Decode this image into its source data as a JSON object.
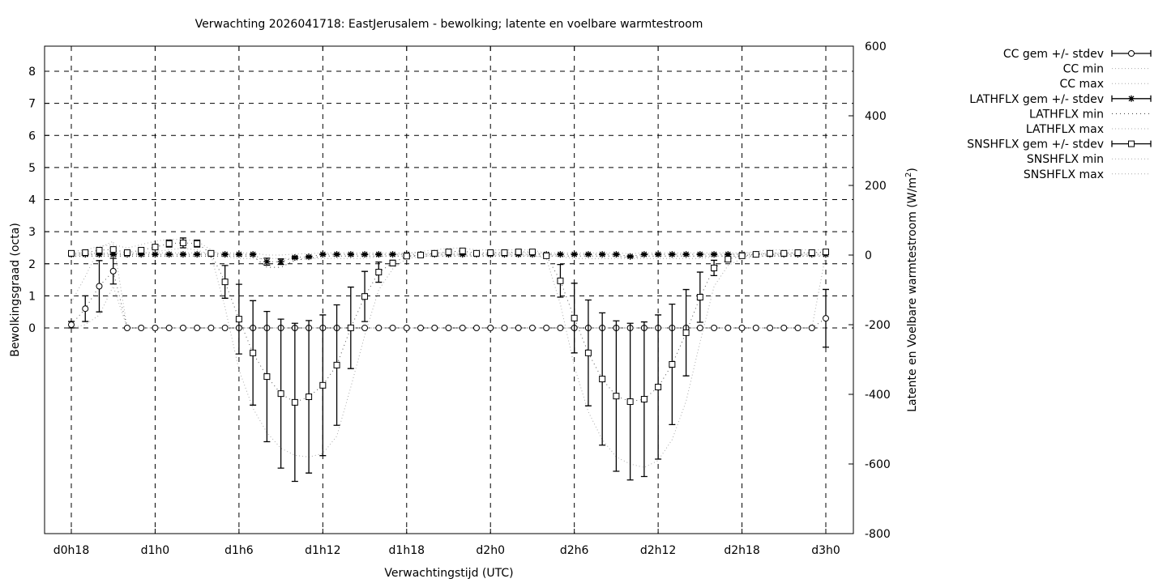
{
  "chart_data": {
    "type": "line",
    "title": "Verwachting 2026041718: EastJerusalem - bewolking; latente en voelbare warmtestroom",
    "xlabel": "Verwachtingstijd (UTC)",
    "ylabel": "Bewolkingsgraad (octa)",
    "y2label": "Latente en Voelbare warmtestroom (W/m",
    "y2label_sup": "2",
    "y2label_end": ")",
    "x_unit": "hours since d0h18",
    "xlim": [
      -1.9,
      56
    ],
    "ylim": [
      -6.4,
      8.8
    ],
    "y2lim": [
      -800,
      600
    ],
    "grid": true,
    "legend_position": "outside-right",
    "x_ticks": [
      {
        "value": 0,
        "label": "d0h18"
      },
      {
        "value": 6,
        "label": "d1h0"
      },
      {
        "value": 12,
        "label": "d1h6"
      },
      {
        "value": 18,
        "label": "d1h12"
      },
      {
        "value": 24,
        "label": "d1h18"
      },
      {
        "value": 30,
        "label": "d2h0"
      },
      {
        "value": 36,
        "label": "d2h6"
      },
      {
        "value": 42,
        "label": "d2h12"
      },
      {
        "value": 48,
        "label": "d2h18"
      },
      {
        "value": 54,
        "label": "d3h0"
      }
    ],
    "y_ticks": [
      "0",
      "1",
      "2",
      "3",
      "4",
      "5",
      "6",
      "7",
      "8"
    ],
    "y2_ticks": [
      "600",
      "400",
      "200",
      "0",
      "-200",
      "-400",
      "-600",
      "-800"
    ],
    "x": [
      0,
      1,
      2,
      3,
      4,
      5,
      6,
      7,
      8,
      9,
      10,
      11,
      12,
      13,
      14,
      15,
      16,
      17,
      18,
      19,
      20,
      21,
      22,
      23,
      24,
      25,
      26,
      27,
      28,
      29,
      30,
      31,
      32,
      33,
      34,
      35,
      36,
      37,
      38,
      39,
      40,
      41,
      42,
      43,
      44,
      45,
      46,
      47,
      48,
      49,
      50,
      51,
      52,
      53,
      54
    ],
    "series": [
      {
        "name": "CC gem +/- stdev",
        "axis": "y",
        "marker": "circle",
        "values": [
          0.1,
          0.6,
          1.3,
          1.77,
          0,
          0,
          0,
          0,
          0,
          0,
          0,
          0,
          0,
          0,
          0,
          0,
          0,
          0,
          0,
          0,
          0,
          0,
          0,
          0,
          0,
          0,
          0,
          0,
          0,
          0,
          0,
          0,
          0,
          0,
          0,
          0,
          0,
          0,
          0,
          0,
          0,
          0,
          0,
          0,
          0,
          0,
          0,
          0,
          0,
          0,
          0,
          0,
          0,
          0,
          0.3
        ],
        "stdev": [
          0.1,
          0.4,
          0.8,
          0.4,
          0,
          0,
          0,
          0,
          0,
          0,
          0,
          0,
          0,
          0,
          0,
          0,
          0,
          0,
          0,
          0,
          0,
          0,
          0,
          0,
          0,
          0,
          0,
          0,
          0,
          0,
          0,
          0,
          0,
          0,
          0,
          0,
          0,
          0,
          0,
          0,
          0,
          0,
          0,
          0,
          0,
          0,
          0,
          0,
          0,
          0,
          0,
          0,
          0,
          0,
          0.9
        ]
      },
      {
        "name": "CC min",
        "axis": "y",
        "style": "dotted",
        "values": [
          0,
          0.1,
          0.4,
          1.3,
          0,
          0,
          0,
          0,
          0,
          0,
          0,
          0,
          0,
          0,
          0,
          0,
          0,
          0,
          0,
          0,
          0,
          0,
          0,
          0,
          0,
          0,
          0,
          0,
          0,
          0,
          0,
          0,
          0,
          0,
          0,
          0,
          0,
          0,
          0,
          0,
          0,
          0,
          0,
          0,
          0,
          0,
          0,
          0,
          0,
          0,
          0,
          0,
          0,
          0,
          0
        ]
      },
      {
        "name": "CC max",
        "axis": "y",
        "style": "dotted",
        "values": [
          0.8,
          1.6,
          2.5,
          2.7,
          0,
          0,
          0,
          0,
          0,
          0,
          0,
          0,
          0,
          0,
          0,
          0,
          0,
          0,
          0,
          0,
          0,
          0,
          0,
          0,
          0,
          0,
          0,
          0,
          0,
          0,
          0,
          0,
          0,
          0,
          0,
          0,
          0,
          0,
          0,
          0,
          0,
          0,
          0,
          0,
          0,
          0,
          0,
          0,
          0,
          0,
          0,
          0,
          0,
          0,
          2.3
        ]
      },
      {
        "name": "LATHFLX gem +/- stdev",
        "axis": "y2",
        "marker": "star",
        "values": [
          2,
          2,
          2,
          2,
          2,
          2,
          2,
          2,
          2,
          2,
          2,
          2,
          2,
          2,
          -19,
          -19,
          -7,
          -5,
          2,
          2,
          2,
          2,
          2,
          2,
          2,
          2,
          2,
          2,
          2,
          2,
          2,
          2,
          2,
          2,
          2,
          2,
          2,
          2,
          2,
          2,
          -4,
          2,
          2,
          2,
          2,
          2,
          2,
          2,
          2,
          2,
          2,
          2,
          2,
          2,
          2
        ],
        "stdev": [
          1,
          1,
          1,
          1,
          1,
          1,
          1,
          1,
          1,
          1,
          1,
          1,
          1,
          1,
          10,
          8,
          3,
          2,
          1,
          1,
          1,
          1,
          1,
          1,
          1,
          1,
          1,
          1,
          1,
          1,
          1,
          1,
          1,
          1,
          1,
          1,
          1,
          1,
          1,
          1,
          2,
          1,
          1,
          1,
          1,
          1,
          1,
          1,
          1,
          1,
          1,
          1,
          1,
          1,
          1
        ]
      },
      {
        "name": "LATHFLX min",
        "axis": "y2",
        "style": "dotted-dark",
        "values": [
          -3,
          -3,
          -3,
          -3,
          -3,
          -3,
          -3,
          -3,
          -3,
          -3,
          -3,
          -3,
          -3,
          -3,
          -35,
          -35,
          -15,
          -10,
          -3,
          -3,
          -3,
          -3,
          -3,
          -3,
          -3,
          -3,
          -3,
          -3,
          -3,
          -3,
          -3,
          -3,
          -3,
          -3,
          -3,
          -3,
          -3,
          -3,
          -3,
          -3,
          -8,
          -3,
          -3,
          -3,
          -3,
          -3,
          -3,
          -3,
          -3,
          -3,
          -3,
          -3,
          -3,
          -3,
          -3
        ]
      },
      {
        "name": "LATHFLX max",
        "axis": "y2",
        "style": "dotted",
        "values": [
          6,
          6,
          6,
          6,
          6,
          6,
          6,
          6,
          6,
          6,
          6,
          6,
          6,
          6,
          0,
          0,
          3,
          4,
          6,
          6,
          6,
          6,
          6,
          6,
          6,
          6,
          6,
          6,
          6,
          6,
          6,
          6,
          6,
          6,
          6,
          6,
          6,
          6,
          6,
          6,
          4,
          6,
          6,
          6,
          6,
          6,
          6,
          6,
          6,
          6,
          6,
          6,
          6,
          6,
          6
        ]
      },
      {
        "name": "SNSHFLX gem +/- stdev",
        "axis": "y2",
        "marker": "square",
        "values": [
          5,
          7,
          14,
          16,
          7,
          14,
          23,
          33,
          35,
          33,
          5,
          -77,
          -184,
          -281,
          -349,
          -398,
          -423,
          -407,
          -374,
          -316,
          -209,
          -119,
          -49,
          -23,
          -3,
          0,
          5,
          9,
          12,
          5,
          7,
          7,
          9,
          9,
          -2,
          -74,
          -181,
          -281,
          -356,
          -405,
          -421,
          -414,
          -379,
          -314,
          -223,
          -121,
          -37,
          -12,
          -2,
          2,
          5,
          5,
          7,
          7,
          9
        ],
        "stdev": [
          3,
          3,
          4,
          4,
          3,
          3,
          6,
          10,
          14,
          10,
          3,
          47,
          100,
          150,
          187,
          214,
          227,
          219,
          202,
          173,
          117,
          72,
          29,
          8,
          3,
          2,
          2,
          2,
          2,
          2,
          2,
          2,
          2,
          2,
          2,
          47,
          100,
          152,
          190,
          216,
          225,
          222,
          207,
          173,
          124,
          72,
          22,
          6,
          3,
          2,
          2,
          2,
          2,
          2,
          2
        ]
      },
      {
        "name": "SNSHFLX min",
        "axis": "y2",
        "style": "dotted",
        "values": [
          0,
          0,
          5,
          5,
          0,
          5,
          10,
          15,
          20,
          15,
          0,
          -150,
          -330,
          -440,
          -510,
          -555,
          -575,
          -580,
          -570,
          -520,
          -380,
          -230,
          -100,
          -40,
          -10,
          -5,
          0,
          0,
          0,
          0,
          0,
          0,
          0,
          0,
          -10,
          -140,
          -320,
          -450,
          -530,
          -580,
          -600,
          -610,
          -590,
          -530,
          -420,
          -250,
          -90,
          -30,
          -10,
          -5,
          0,
          0,
          0,
          0,
          0
        ]
      },
      {
        "name": "SNSHFLX max",
        "axis": "y2",
        "style": "dotted",
        "values": [
          10,
          15,
          25,
          30,
          20,
          30,
          40,
          45,
          45,
          40,
          15,
          -5,
          -10,
          -10,
          -10,
          -10,
          -10,
          -10,
          -10,
          -10,
          -10,
          -10,
          -5,
          0,
          5,
          10,
          15,
          20,
          20,
          15,
          15,
          15,
          15,
          15,
          5,
          -5,
          -10,
          -10,
          -10,
          -10,
          -10,
          -10,
          -10,
          -10,
          -10,
          -10,
          -5,
          0,
          5,
          10,
          15,
          15,
          15,
          15,
          15
        ]
      }
    ]
  }
}
